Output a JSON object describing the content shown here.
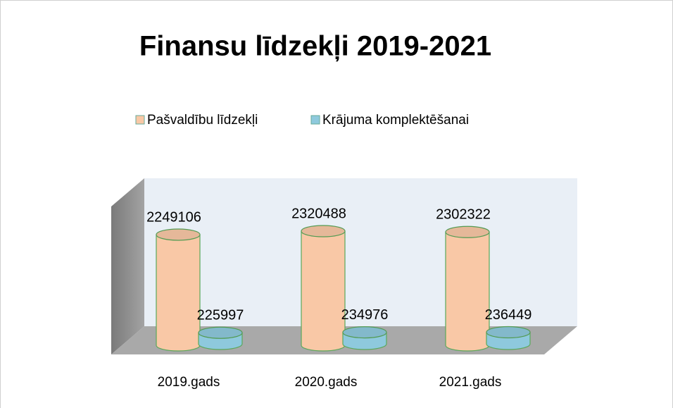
{
  "chart_data": {
    "type": "bar3d",
    "title": "Finansu līdzekļi 2019-2021",
    "categories": [
      "2019.gads",
      "2020.gads",
      "2021.gads"
    ],
    "series": [
      {
        "name": "Pašvaldību līdzekļi",
        "color": "#f9c8a6",
        "values": [
          2249106,
          2320488,
          2302322
        ]
      },
      {
        "name": "Krājuma komplektēšanai",
        "color": "#8ec9dd",
        "values": [
          225997,
          234976,
          236449
        ]
      }
    ],
    "legend": "top"
  }
}
